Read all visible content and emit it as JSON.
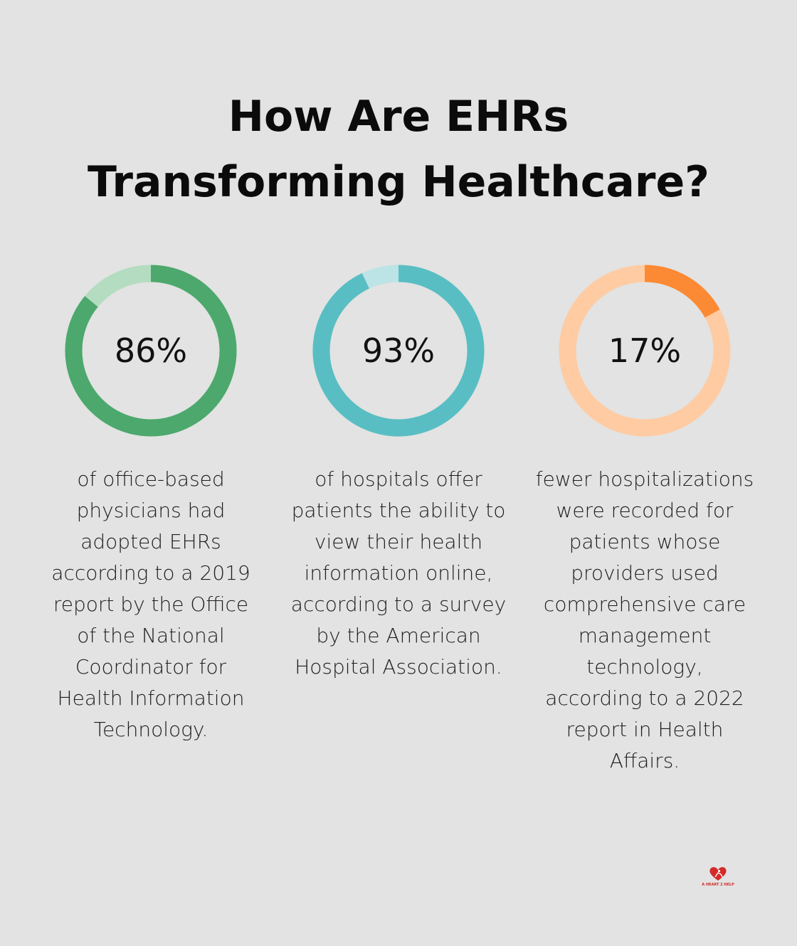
{
  "title": {
    "line1": "How Are EHRs",
    "line2": "Transforming Healthcare?"
  },
  "chart_data": {
    "type": "pie",
    "title": "How Are EHRs Transforming Healthcare?",
    "items": [
      {
        "value": 86,
        "label": "86%",
        "description": "of office-based physicians had adopted EHRs according to a 2019 report by the Office of the National Coordinator for Health Information Technology.",
        "color": "#4ca86c",
        "track_color": "#b3dcc0"
      },
      {
        "value": 93,
        "label": "93%",
        "description": "of hospitals offer patients the ability to view their health information online, according to a survey by the American Hospital Association.",
        "color": "#59bec3",
        "track_color": "#bce3e6"
      },
      {
        "value": 17,
        "label": "17%",
        "description": "fewer hospitalizations were recorded for patients whose providers used comprehensive care management technology, according to a 2022 report in Health Affairs.",
        "color": "#fc8a34",
        "track_color": "#ffcba3"
      }
    ]
  },
  "logo": {
    "text": "A HEART 2 HELP",
    "icon": "heart-icon",
    "color": "#d42a2a"
  }
}
